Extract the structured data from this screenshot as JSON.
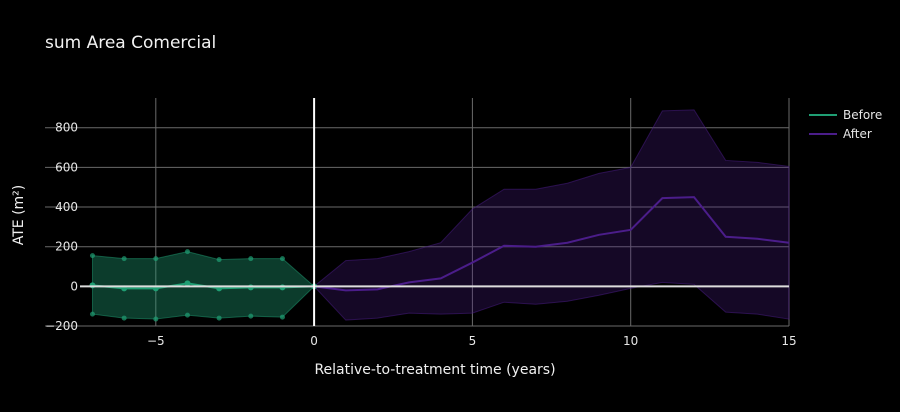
{
  "chart_data": {
    "type": "line",
    "title": "sum Area Comercial",
    "xlabel": "Relative-to-treatment time (years)",
    "ylabel": "ATE (m²)",
    "xlim": [
      -8.5,
      15
    ],
    "ylim": [
      -200,
      950
    ],
    "xticks": [
      -5,
      0,
      5,
      10,
      15
    ],
    "xtick_labels": [
      "−5",
      "0",
      "5",
      "10",
      "15"
    ],
    "yticks": [
      -200,
      0,
      200,
      400,
      600,
      800
    ],
    "ytick_labels": [
      "−200",
      "0",
      "200",
      "400",
      "600",
      "800"
    ],
    "grid": true,
    "legend_position": "top-right",
    "series": [
      {
        "name": "Before",
        "color": "#1f9e73",
        "markers": true,
        "x": [
          -7,
          -6,
          -5,
          -4,
          -3,
          -2,
          -1,
          0
        ],
        "y": [
          5,
          -10,
          -10,
          15,
          -10,
          -5,
          -5,
          0
        ],
        "upper": [
          155,
          140,
          140,
          175,
          135,
          140,
          140,
          0
        ],
        "lower": [
          -140,
          -160,
          -165,
          -145,
          -160,
          -150,
          -155,
          0
        ]
      },
      {
        "name": "After",
        "color": "#4b1d8a",
        "markers": false,
        "x": [
          0,
          1,
          2,
          3,
          4,
          5,
          6,
          7,
          8,
          9,
          10,
          11,
          12,
          13,
          14,
          15
        ],
        "y": [
          0,
          -20,
          -15,
          20,
          40,
          120,
          205,
          200,
          220,
          260,
          285,
          445,
          450,
          250,
          240,
          220
        ],
        "upper": [
          0,
          130,
          140,
          175,
          220,
          390,
          490,
          490,
          520,
          570,
          600,
          885,
          890,
          635,
          625,
          605
        ],
        "lower": [
          0,
          -170,
          -160,
          -135,
          -140,
          -135,
          -80,
          -90,
          -75,
          -45,
          -10,
          20,
          10,
          -130,
          -140,
          -165
        ]
      }
    ]
  }
}
